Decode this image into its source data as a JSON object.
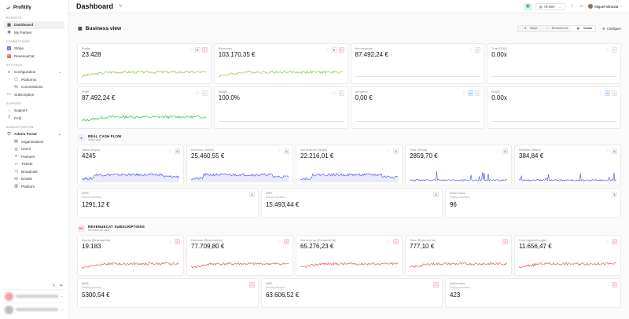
{
  "app": {
    "name": "Profitify"
  },
  "sidebar": {
    "groups": [
      {
        "label": "REPORTS",
        "items": [
          {
            "label": "Dashboard",
            "icon": "grid-icon",
            "active": true
          },
          {
            "label": "My Partner",
            "icon": "user-icon"
          }
        ]
      },
      {
        "label": "CONNECTIONS",
        "items": [
          {
            "label": "Stripe",
            "icon": "stripe-icon"
          },
          {
            "label": "RevenueCat",
            "icon": "revenuecat-icon"
          }
        ]
      },
      {
        "label": "SETTINGS",
        "items": [
          {
            "label": "Configuration",
            "icon": "sliders-icon",
            "expandable": true
          },
          {
            "label": "Platforms",
            "icon": "box-icon",
            "sub": true
          },
          {
            "label": "Commissions",
            "icon": "percent-icon",
            "sub": true
          },
          {
            "label": "Subscription",
            "icon": "card-icon"
          }
        ]
      },
      {
        "label": "SUPPORT",
        "items": [
          {
            "label": "Support",
            "icon": "chat-icon"
          },
          {
            "label": "FAQ",
            "icon": "help-icon"
          }
        ]
      },
      {
        "label": "ADMINISTRATION",
        "items": [
          {
            "label": "Admin Portal",
            "icon": "shield-icon",
            "expandable": true,
            "bold": true
          },
          {
            "label": "Organizations",
            "icon": "building-icon",
            "sub": true
          },
          {
            "label": "Users",
            "icon": "users-icon",
            "sub": true
          },
          {
            "label": "Partners",
            "icon": "handshake-icon",
            "sub": true
          },
          {
            "label": "Tickets",
            "icon": "ticket-icon",
            "sub": true
          },
          {
            "label": "Broadcast",
            "icon": "megaphone-icon",
            "sub": true
          },
          {
            "label": "Emails",
            "icon": "mail-icon",
            "sub": true
          },
          {
            "label": "Platform",
            "icon": "server-icon",
            "sub": true
          }
        ]
      }
    ]
  },
  "header": {
    "title": "Dashboard",
    "range": "All time",
    "user": "Miguel Miranda"
  },
  "business": {
    "title": "Business view",
    "filters": [
      "Stripe",
      "RevenueCat",
      "Global"
    ],
    "active_filter": "Global",
    "configure": "Configure"
  },
  "colors": {
    "green": "#8cc63f",
    "bright_green": "#2fbf4f",
    "blue": "#4d4ff0",
    "red": "#ee4a4a"
  },
  "cards_business": [
    [
      {
        "label": "Profits",
        "value": "23.428",
        "icons": [
          "info",
          "stripe",
          "rc"
        ],
        "spark": "green"
      },
      {
        "label": "Revenues",
        "value": "103.170,35 €",
        "icons": [
          "info",
          "stripe",
          "rc"
        ],
        "spark": "green"
      },
      {
        "label": "Net revenues",
        "value": "87.492,24 €",
        "icons": [
          "info",
          "check"
        ],
        "spark": "flat"
      },
      {
        "label": "True ROAS",
        "value": "0.00x",
        "icons": [
          "info",
          "check"
        ],
        "spark": "flat"
      }
    ],
    [
      {
        "label": "Profit",
        "value": "87.492,24 €",
        "icons": [
          "info",
          "check"
        ],
        "spark": "bright"
      },
      {
        "label": "Margin",
        "value": "100.0%",
        "icons": [
          "info",
          "check"
        ],
        "spark": "flat"
      },
      {
        "label": "Ad spend",
        "value": "0,00 €",
        "icons": [
          "info",
          "meta",
          "tiktok"
        ],
        "spark": "flat"
      },
      {
        "label": "ROAS",
        "value": "0.00x",
        "icons": [
          "info",
          "meta",
          "tiktok"
        ],
        "spark": "flat"
      }
    ]
  ],
  "stripe_section": {
    "title": "REAL CASH FLOW",
    "subtitle": "Stripe data"
  },
  "cards_stripe": [
    {
      "label": "Sales (Stripe)",
      "value": "4245",
      "spark": "blue"
    },
    {
      "label": "Revenue (Stripe)",
      "value": "25.460,55 €",
      "spark": "blue"
    },
    {
      "label": "Net revenue (Stripe)",
      "value": "22.216,01 €",
      "spark": "blue"
    },
    {
      "label": "Fees (Stripe)",
      "value": "2859,70 €",
      "spark": "blue-spiky"
    },
    {
      "label": "Refunds (Stripe)",
      "value": "384,84 €",
      "spark": "blue-spiky"
    }
  ],
  "cards_stripe_recurring": [
    {
      "label": "MRR",
      "sub": "Monthly recurring",
      "value": "1291,12 €"
    },
    {
      "label": "ARR",
      "sub": "Annual projection",
      "value": "15.493,44 €"
    },
    {
      "label": "Active subs",
      "sub": "Paying customers",
      "value": "96"
    }
  ],
  "rc_section": {
    "title": "REVENUECAT SUBSCRIPTIONS",
    "subtitle": "RevenueCat data"
  },
  "cards_rc": [
    {
      "label": "Events (RevenueCat)",
      "value": "19.183",
      "spark": "red"
    },
    {
      "label": "Revenue (RevenueCat)",
      "value": "77.709,80 €",
      "spark": "red"
    },
    {
      "label": "Net revenue (RevenueCat)",
      "value": "65.276,23 €",
      "spark": "red"
    },
    {
      "label": "Fees (RevenueCat)",
      "value": "777,10 €",
      "spark": "red"
    },
    {
      "label": "Fees (Apple/Google)",
      "value": "11.656,47 €",
      "spark": "red"
    }
  ],
  "cards_rc_recurring": [
    {
      "label": "MRR",
      "sub": "Monthly recurring",
      "value": "5300,54 €"
    },
    {
      "label": "ARR",
      "sub": "Annual projection",
      "value": "63.606,52 €"
    },
    {
      "label": "Active subs",
      "sub": "Paying customers",
      "value": "423"
    }
  ]
}
